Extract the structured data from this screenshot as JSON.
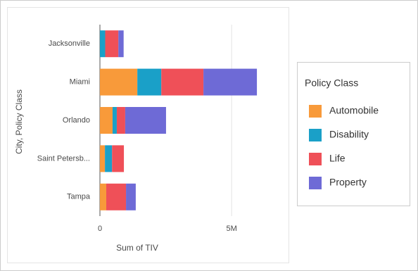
{
  "chart_data": {
    "type": "stacked-bar-horizontal",
    "x_label": "Sum of TIV",
    "y_label": "City, Policy Class",
    "legend_title": "Policy Class",
    "categories": [
      "Jacksonville",
      "Miami",
      "Orlando",
      "Saint Petersb...",
      "Tampa"
    ],
    "series": [
      {
        "name": "Automobile",
        "color": "#f89a3a",
        "values": [
          0,
          1420000,
          480000,
          190000,
          240000
        ]
      },
      {
        "name": "Disability",
        "color": "#1aa0c8",
        "values": [
          200000,
          910000,
          160000,
          270000,
          0
        ]
      },
      {
        "name": "Life",
        "color": "#ef5058",
        "values": [
          500000,
          1600000,
          320000,
          450000,
          750000
        ]
      },
      {
        "name": "Property",
        "color": "#6e6ad6",
        "values": [
          200000,
          2030000,
          1550000,
          0,
          370000
        ]
      }
    ],
    "xlim": [
      0,
      7000000
    ],
    "xticks": [
      0,
      {
        "value": 5000000,
        "label": "5M"
      }
    ],
    "grid": true
  }
}
